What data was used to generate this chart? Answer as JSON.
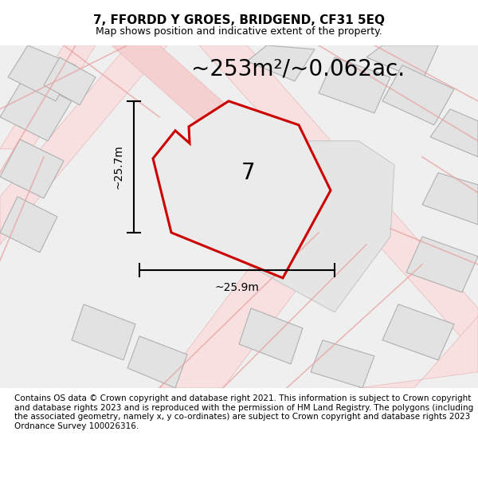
{
  "title": "7, FFORDD Y GROES, BRIDGEND, CF31 5EQ",
  "subtitle": "Map shows position and indicative extent of the property.",
  "area_text": "~253m²/~0.062ac.",
  "label_7": "7",
  "dim_height": "~25.7m",
  "dim_width": "~25.9m",
  "footer": "Contains OS data © Crown copyright and database right 2021. This information is subject to Crown copyright and database rights 2023 and is reproduced with the permission of HM Land Registry. The polygons (including the associated geometry, namely x, y co-ordinates) are subject to Crown copyright and database rights 2023 Ordnance Survey 100026316.",
  "bg_color": "#efefef",
  "plot_fill": "#e8e8e8",
  "plot_edge": "#cc0000",
  "neighbor_fill": "#e2e2e2",
  "neighbor_edge": "#b0b0b0",
  "road_color": "#f5c8c8",
  "title_fontsize": 11,
  "subtitle_fontsize": 9,
  "area_fontsize": 20,
  "label_fontsize": 20,
  "dim_fontsize": 10,
  "footer_fontsize": 7.5
}
